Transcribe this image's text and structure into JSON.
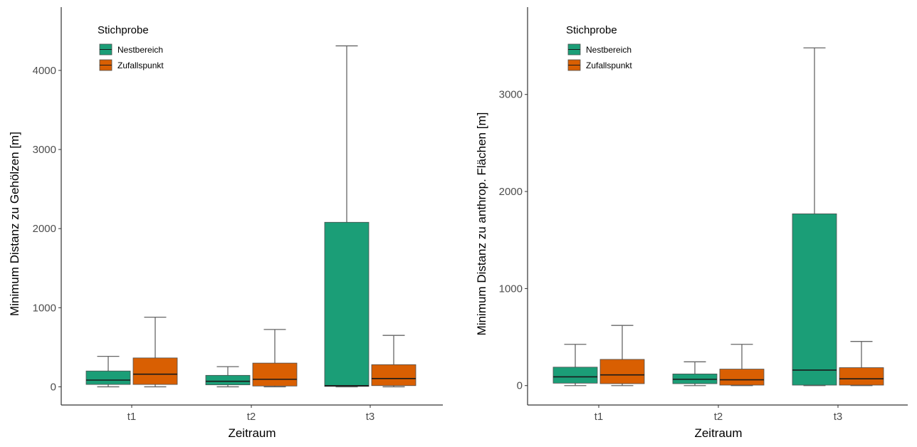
{
  "colors": {
    "Nestbereich": "#1B9E77",
    "Zufallspunkt": "#D95F02",
    "axis": "#333333",
    "whisker": "#666666",
    "median": "#1a1a1a"
  },
  "chart_data": [
    {
      "type": "boxplot",
      "xlabel": "Zeitraum",
      "ylabel": "Minimum Distanz zu Gehölzen [m]",
      "ylim": [
        -230,
        4800
      ],
      "yticks": [
        0,
        1000,
        2000,
        3000,
        4000
      ],
      "categories": [
        "t1",
        "t2",
        "t3"
      ],
      "legend": {
        "title": "Stichprobe",
        "position": "top-left"
      },
      "series": [
        {
          "name": "Nestbereich",
          "boxes": [
            {
              "category": "t1",
              "whisker_low": 0,
              "q1": 30,
              "median": 85,
              "q3": 200,
              "whisker_high": 385
            },
            {
              "category": "t2",
              "whisker_low": 0,
              "q1": 25,
              "median": 70,
              "q3": 145,
              "whisker_high": 255
            },
            {
              "category": "t3",
              "whisker_low": 0,
              "q1": 5,
              "median": 15,
              "q3": 2080,
              "whisker_high": 4310
            }
          ]
        },
        {
          "name": "Zufallspunkt",
          "boxes": [
            {
              "category": "t1",
              "whisker_low": 0,
              "q1": 30,
              "median": 160,
              "q3": 365,
              "whisker_high": 880
            },
            {
              "category": "t2",
              "whisker_low": 0,
              "q1": 10,
              "median": 95,
              "q3": 300,
              "whisker_high": 725
            },
            {
              "category": "t3",
              "whisker_low": 0,
              "q1": 15,
              "median": 105,
              "q3": 280,
              "whisker_high": 650
            }
          ]
        }
      ]
    },
    {
      "type": "boxplot",
      "xlabel": "Zeitraum",
      "ylabel": "Minimum Distanz zu anthrop. Flächen [m]",
      "ylim": [
        -200,
        3900
      ],
      "yticks": [
        0,
        1000,
        2000,
        3000
      ],
      "categories": [
        "t1",
        "t2",
        "t3"
      ],
      "legend": {
        "title": "Stichprobe",
        "position": "top-left"
      },
      "series": [
        {
          "name": "Nestbereich",
          "boxes": [
            {
              "category": "t1",
              "whisker_low": 0,
              "q1": 25,
              "median": 90,
              "q3": 190,
              "whisker_high": 425
            },
            {
              "category": "t2",
              "whisker_low": 0,
              "q1": 20,
              "median": 65,
              "q3": 120,
              "whisker_high": 245
            },
            {
              "category": "t3",
              "whisker_low": 0,
              "q1": 5,
              "median": 160,
              "q3": 1770,
              "whisker_high": 3480
            }
          ]
        },
        {
          "name": "Zufallspunkt",
          "boxes": [
            {
              "category": "t1",
              "whisker_low": 0,
              "q1": 20,
              "median": 110,
              "q3": 270,
              "whisker_high": 620
            },
            {
              "category": "t2",
              "whisker_low": 0,
              "q1": 5,
              "median": 60,
              "q3": 170,
              "whisker_high": 425
            },
            {
              "category": "t3",
              "whisker_low": 0,
              "q1": 5,
              "median": 70,
              "q3": 185,
              "whisker_high": 455
            }
          ]
        }
      ]
    }
  ]
}
